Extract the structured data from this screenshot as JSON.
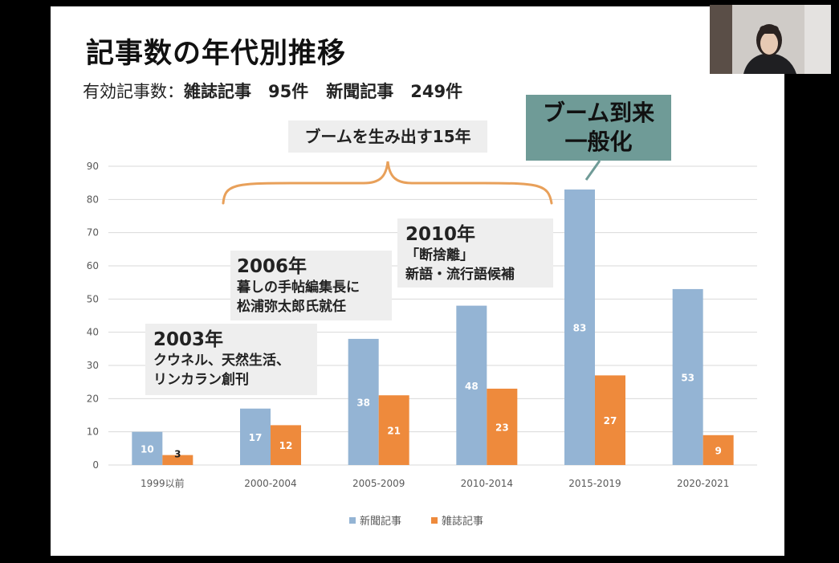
{
  "slide": {
    "title": "記事数の年代別推移",
    "subtitle_prefix": "有効記事数：",
    "subtitle_magazine": "雑誌記事　95件",
    "subtitle_newspaper": "新聞記事　249件"
  },
  "annotations": {
    "boom_15_years": "ブームを生み出す15年",
    "boom_line1": "ブーム到来",
    "boom_line2": "一般化",
    "a2003_year": "2003年",
    "a2003_line1": "クウネル、天然生活、",
    "a2003_line2": "リンカラン創刊",
    "a2006_year": "2006年",
    "a2006_line1": "暮しの手帖編集長に",
    "a2006_line2": "松浦弥太郎氏就任",
    "a2010_year": "2010年",
    "a2010_line1": "「断捨離」",
    "a2010_line2": "新語・流行語候補"
  },
  "colors": {
    "newspaper": "#94b4d4",
    "magazine": "#ee8a3c",
    "bracket": "#e8a05a",
    "boom_box": "#6f9b97"
  },
  "chart_data": {
    "type": "bar",
    "categories": [
      "1999以前",
      "2000-2004",
      "2005-2009",
      "2010-2014",
      "2015-2019",
      "2020-2021"
    ],
    "series": [
      {
        "name": "新聞記事",
        "values": [
          10,
          17,
          38,
          48,
          83,
          53
        ]
      },
      {
        "name": "雑誌記事",
        "values": [
          3,
          12,
          21,
          23,
          27,
          9
        ]
      }
    ],
    "ylim": [
      0,
      90
    ],
    "yticks": [
      0,
      10,
      20,
      30,
      40,
      50,
      60,
      70,
      80,
      90
    ],
    "grid": true,
    "legend": "bottom"
  }
}
